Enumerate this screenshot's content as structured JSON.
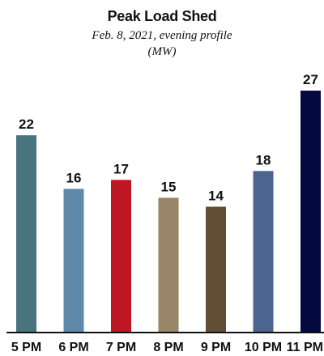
{
  "chart_data": {
    "type": "bar",
    "title": "Peak Load Shed",
    "subtitle_line1": "Feb. 8, 2021, evening profile",
    "subtitle_line2": "(MW)",
    "categories": [
      "5 PM",
      "6 PM",
      "7 PM",
      "8 PM",
      "9 PM",
      "10 PM",
      "11 PM"
    ],
    "values": [
      22,
      16,
      17,
      15,
      14,
      18,
      27
    ],
    "colors": [
      "#47747f",
      "#6088a8",
      "#be1623",
      "#998567",
      "#624e34",
      "#4c6590",
      "#040a40"
    ],
    "ylim": [
      0,
      27
    ],
    "grid": false,
    "xlabel": "",
    "ylabel": ""
  }
}
